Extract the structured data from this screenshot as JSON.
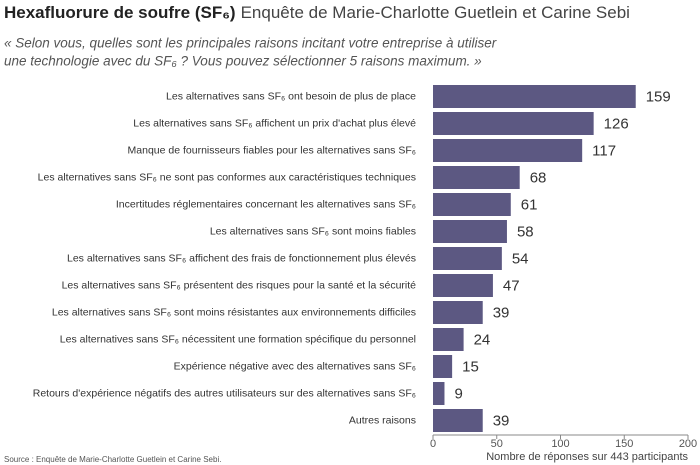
{
  "chart_data": {
    "type": "hbar",
    "title": "Hexafluorure de soufre (SF₆)",
    "title_note": "Enquête de Marie-Charlotte Guetlein et Carine Sebi",
    "question_lines": [
      "« Selon vous, quelles sont les principales raisons incitant votre entreprise à utiliser",
      "une technologie avec du SF₆ ? Vous pouvez sélectionner 5 raisons maximum. »"
    ],
    "categories": [
      "Les alternatives sans SF₆ ont besoin de plus de place",
      "Les alternatives sans SF₆ affichent un prix d'achat plus élevé",
      "Manque de fournisseurs fiables pour les alternatives sans SF₆",
      "Les alternatives sans SF₆ ne sont pas conformes aux caractéristiques techniques",
      "Incertitudes réglementaires concernant les alternatives sans SF₆",
      "Les alternatives sans SF₆ sont moins fiables",
      "Les alternatives sans SF₆ affichent des frais de fonctionnement plus élevés",
      "Les alternatives sans SF₆ présentent des risques pour la santé et la sécurité",
      "Les alternatives sans SF₆ sont moins résistantes aux environnements difficiles",
      "Les alternatives sans SF₆ nécessitent une formation spécifique du personnel",
      "Expérience négative avec des alternatives sans SF₆",
      "Retours d'expérience négatifs des autres utilisateurs sur des alternatives sans SF₆",
      "Autres raisons"
    ],
    "values": [
      159,
      126,
      117,
      68,
      61,
      58,
      54,
      47,
      39,
      24,
      15,
      9,
      39
    ],
    "color": "#5c5882",
    "xlim": [
      0,
      200
    ],
    "xticks": [
      0,
      50,
      100,
      150,
      200
    ],
    "xlabel": "Nombre de réponses sur 443 participants",
    "source": "Source : Enquête de Marie-Charlotte Guetlein et Carine Sebi."
  }
}
